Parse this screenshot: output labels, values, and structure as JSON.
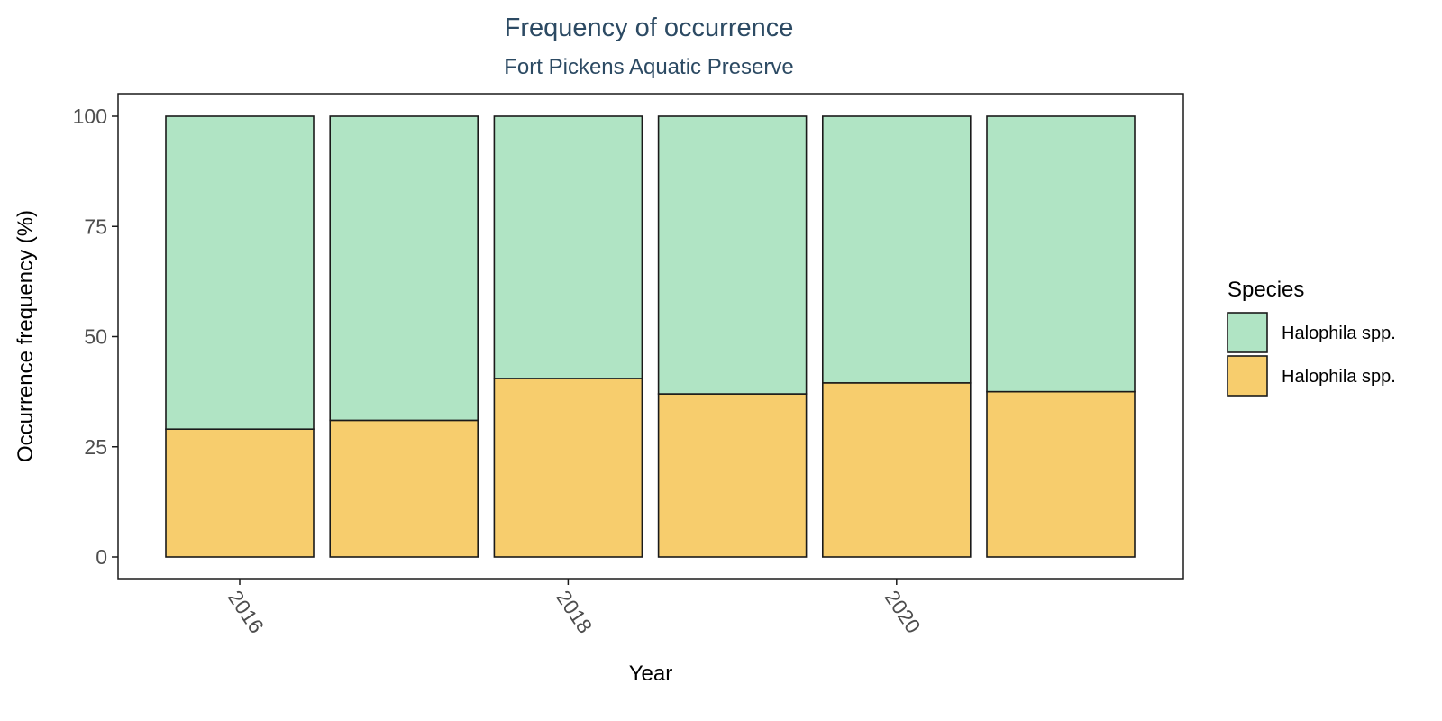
{
  "chart_data": {
    "type": "bar",
    "stacked": true,
    "title": "Frequency of occurrence",
    "subtitle": "Fort Pickens Aquatic Preserve",
    "xlabel": "Year",
    "ylabel": "Occurrence frequency (%)",
    "x": [
      2016,
      2017,
      2018,
      2019,
      2020,
      2021
    ],
    "x_tick_labels": [
      "2016",
      "2018",
      "2020"
    ],
    "x_tick_values": [
      2016,
      2018,
      2020
    ],
    "y_ticks": [
      0,
      25,
      50,
      75,
      100
    ],
    "ylim": [
      0,
      100
    ],
    "grid": false,
    "legend_position": "right",
    "legend_title": "Species",
    "series": [
      {
        "name": "Halophila spp.",
        "color": "#F7CD6D",
        "values": [
          29,
          31,
          40.5,
          37,
          39.5,
          37.5
        ]
      },
      {
        "name": "Halophila spp.",
        "color": "#B0E4C4",
        "values": [
          71,
          69,
          59.5,
          63,
          60.5,
          62.5
        ]
      }
    ],
    "legend_order": [
      1,
      0
    ],
    "colors": {
      "title": "#2C4A63",
      "axis_text": "#4D4D4D",
      "axis_title": "#000000",
      "bar_outline": "#1A1A1A",
      "panel_border": "#1A1A1A"
    }
  }
}
